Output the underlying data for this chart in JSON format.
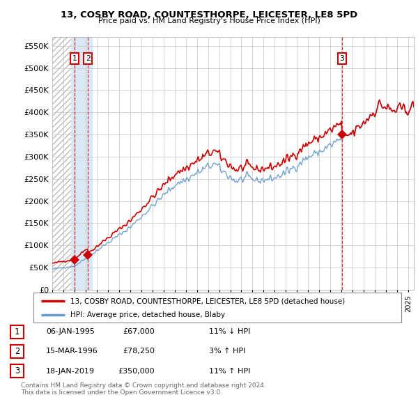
{
  "title1": "13, COSBY ROAD, COUNTESTHORPE, LEICESTER, LE8 5PD",
  "title2": "Price paid vs. HM Land Registry's House Price Index (HPI)",
  "legend_line1": "13, COSBY ROAD, COUNTESTHORPE, LEICESTER, LE8 5PD (detached house)",
  "legend_line2": "HPI: Average price, detached house, Blaby",
  "footer1": "Contains HM Land Registry data © Crown copyright and database right 2024.",
  "footer2": "This data is licensed under the Open Government Licence v3.0.",
  "ylabel_ticks": [
    "£0",
    "£50K",
    "£100K",
    "£150K",
    "£200K",
    "£250K",
    "£300K",
    "£350K",
    "£400K",
    "£450K",
    "£500K",
    "£550K"
  ],
  "ytick_values": [
    0,
    50000,
    100000,
    150000,
    200000,
    250000,
    300000,
    350000,
    400000,
    450000,
    500000,
    550000
  ],
  "xmin": 1993.0,
  "xmax": 2025.5,
  "ymin": 0,
  "ymax": 570000,
  "sale_dates": [
    1995.02,
    1996.21,
    2019.05
  ],
  "sale_prices": [
    67000,
    78250,
    350000
  ],
  "sale_labels": [
    "1",
    "2",
    "3"
  ],
  "vline_dates": [
    1995.02,
    1996.21,
    2019.05
  ],
  "hatch_xmax": 1994.7,
  "highlight_xmin": 1994.7,
  "highlight_xmax": 1996.55,
  "table_rows": [
    {
      "label": "1",
      "date": "06-JAN-1995",
      "price": "£67,000",
      "hpi": "11% ↓ HPI"
    },
    {
      "label": "2",
      "date": "15-MAR-1996",
      "price": "£78,250",
      "hpi": "3% ↑ HPI"
    },
    {
      "label": "3",
      "date": "18-JAN-2019",
      "price": "£350,000",
      "hpi": "11% ↑ HPI"
    }
  ],
  "line_color_red": "#cc0000",
  "line_color_blue": "#6699cc",
  "vline_color": "#cc0000",
  "highlight_color": "#d8e8f5",
  "bg_color": "#ffffff",
  "grid_color": "#cccccc"
}
